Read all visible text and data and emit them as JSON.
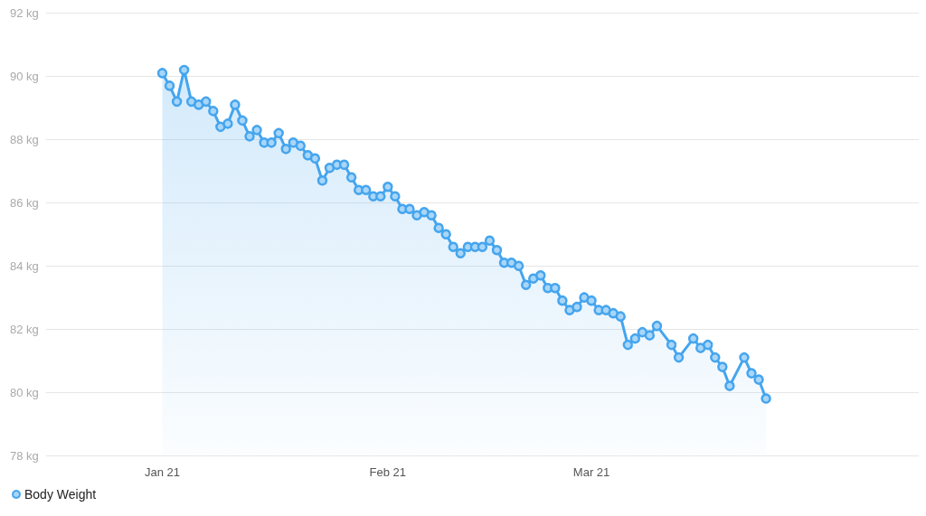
{
  "chart_data": {
    "type": "area",
    "x": [
      "2021-01-01",
      "2021-01-02",
      "2021-01-03",
      "2021-01-04",
      "2021-01-05",
      "2021-01-06",
      "2021-01-07",
      "2021-01-08",
      "2021-01-09",
      "2021-01-10",
      "2021-01-11",
      "2021-01-12",
      "2021-01-13",
      "2021-01-14",
      "2021-01-15",
      "2021-01-16",
      "2021-01-17",
      "2021-01-18",
      "2021-01-19",
      "2021-01-20",
      "2021-01-21",
      "2021-01-22",
      "2021-01-23",
      "2021-01-24",
      "2021-01-25",
      "2021-01-26",
      "2021-01-27",
      "2021-01-28",
      "2021-01-29",
      "2021-01-30",
      "2021-01-31",
      "2021-02-01",
      "2021-02-02",
      "2021-02-03",
      "2021-02-04",
      "2021-02-05",
      "2021-02-06",
      "2021-02-07",
      "2021-02-08",
      "2021-02-09",
      "2021-02-10",
      "2021-02-11",
      "2021-02-12",
      "2021-02-13",
      "2021-02-14",
      "2021-02-15",
      "2021-02-16",
      "2021-02-17",
      "2021-02-18",
      "2021-02-19",
      "2021-02-20",
      "2021-02-21",
      "2021-02-22",
      "2021-02-23",
      "2021-02-24",
      "2021-02-25",
      "2021-02-26",
      "2021-02-27",
      "2021-02-28",
      "2021-03-01",
      "2021-03-02",
      "2021-03-03",
      "2021-03-04",
      "2021-03-05",
      "2021-03-06",
      "2021-03-07",
      "2021-03-08",
      "2021-03-09",
      "2021-03-10",
      "2021-03-12",
      "2021-03-13",
      "2021-03-15",
      "2021-03-16",
      "2021-03-17",
      "2021-03-18",
      "2021-03-19",
      "2021-03-20",
      "2021-03-22",
      "2021-03-23",
      "2021-03-24",
      "2021-03-25"
    ],
    "series": [
      {
        "name": "Body Weight",
        "color": "#45a5ee",
        "values": [
          90.1,
          89.7,
          89.2,
          90.2,
          89.2,
          89.1,
          89.2,
          88.9,
          88.4,
          88.5,
          89.1,
          88.6,
          88.1,
          88.3,
          87.9,
          87.9,
          88.2,
          87.7,
          87.9,
          87.8,
          87.5,
          87.4,
          86.7,
          87.1,
          87.2,
          87.2,
          86.8,
          86.4,
          86.4,
          86.2,
          86.2,
          86.5,
          86.2,
          85.8,
          85.8,
          85.6,
          85.7,
          85.6,
          85.2,
          85.0,
          84.6,
          84.4,
          84.6,
          84.6,
          84.6,
          84.8,
          84.5,
          84.1,
          84.1,
          84.0,
          83.4,
          83.6,
          83.7,
          83.3,
          83.3,
          82.9,
          82.6,
          82.7,
          83.0,
          82.9,
          82.6,
          82.6,
          82.5,
          82.4,
          81.5,
          81.7,
          81.9,
          81.8,
          82.1,
          81.5,
          81.1,
          81.7,
          81.4,
          81.5,
          81.1,
          80.8,
          80.2,
          81.1,
          80.6,
          80.4,
          79.8
        ]
      }
    ],
    "xlim": [
      "2020-12-16",
      "2021-04-15"
    ],
    "xticks": [
      {
        "value": "2021-01-01",
        "label": "Jan 21"
      },
      {
        "value": "2021-02-01",
        "label": "Feb 21"
      },
      {
        "value": "2021-03-01",
        "label": "Mar 21"
      }
    ],
    "ylim": [
      78,
      92
    ],
    "yticks": [
      {
        "value": 78,
        "label": "78 kg"
      },
      {
        "value": 80,
        "label": "80 kg"
      },
      {
        "value": 82,
        "label": "82 kg"
      },
      {
        "value": 84,
        "label": "84 kg"
      },
      {
        "value": 86,
        "label": "86 kg"
      },
      {
        "value": 88,
        "label": "88 kg"
      },
      {
        "value": 90,
        "label": "90 kg"
      },
      {
        "value": 92,
        "label": "92 kg"
      }
    ],
    "grid": "y",
    "legend": "bottom left",
    "marker": "circle",
    "line_style": "solid"
  }
}
